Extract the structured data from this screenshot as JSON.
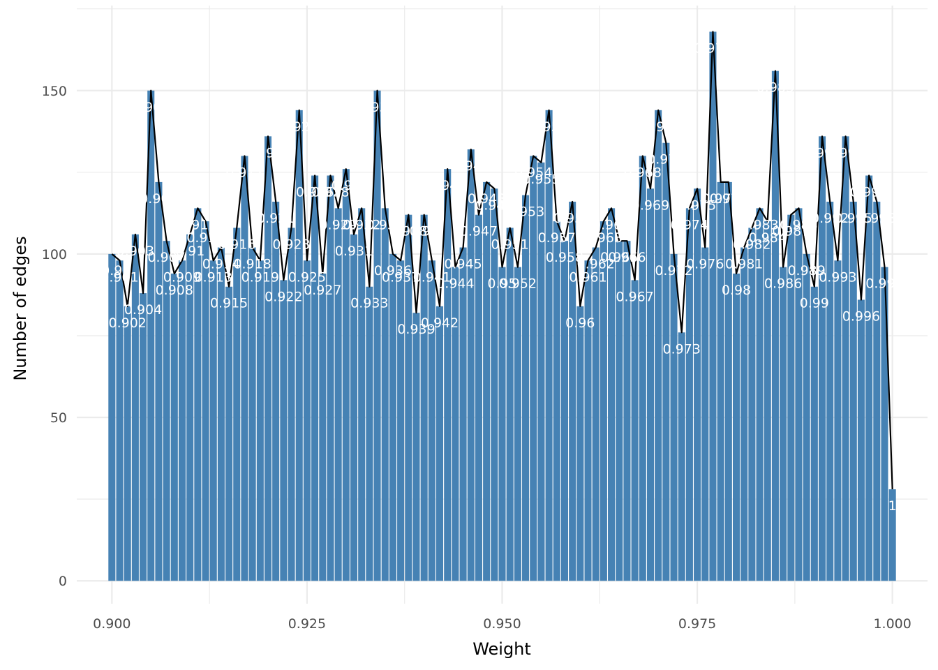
{
  "chart_data": {
    "type": "bar",
    "title": "",
    "xlabel": "Weight",
    "ylabel": "Number of edges",
    "xlim": [
      0.8955,
      1.0045
    ],
    "ylim": [
      -7,
      176
    ],
    "x_ticks": [
      0.9,
      0.925,
      0.95,
      0.975,
      1.0
    ],
    "x_tick_labels": [
      "0.900",
      "0.925",
      "0.950",
      "0.975",
      "1.000"
    ],
    "y_ticks": [
      0,
      50,
      100,
      150
    ],
    "y_tick_labels": [
      "0",
      "50",
      "100",
      "150"
    ],
    "grid": true,
    "legend": "none",
    "bar_color": "#4682b4",
    "line_color": "#000000",
    "label_color": "#ffffff",
    "x": [
      0.9,
      0.901,
      0.902,
      0.903,
      0.904,
      0.905,
      0.906,
      0.907,
      0.908,
      0.909,
      0.91,
      0.911,
      0.912,
      0.913,
      0.914,
      0.915,
      0.916,
      0.917,
      0.918,
      0.919,
      0.92,
      0.921,
      0.922,
      0.923,
      0.924,
      0.925,
      0.926,
      0.927,
      0.928,
      0.929,
      0.93,
      0.931,
      0.932,
      0.933,
      0.934,
      0.935,
      0.936,
      0.937,
      0.938,
      0.939,
      0.94,
      0.941,
      0.942,
      0.943,
      0.944,
      0.945,
      0.946,
      0.947,
      0.948,
      0.949,
      0.95,
      0.951,
      0.952,
      0.953,
      0.954,
      0.955,
      0.956,
      0.957,
      0.958,
      0.959,
      0.96,
      0.961,
      0.962,
      0.963,
      0.964,
      0.965,
      0.966,
      0.967,
      0.968,
      0.969,
      0.97,
      0.971,
      0.972,
      0.973,
      0.974,
      0.975,
      0.976,
      0.977,
      0.978,
      0.979,
      0.98,
      0.981,
      0.982,
      0.983,
      0.984,
      0.985,
      0.986,
      0.987,
      0.988,
      0.989,
      0.99,
      0.991,
      0.992,
      0.993,
      0.994,
      0.995,
      0.996,
      0.997,
      0.998,
      0.999,
      1.0
    ],
    "values": [
      100,
      98,
      84,
      106,
      88,
      150,
      122,
      104,
      94,
      98,
      106,
      114,
      110,
      98,
      102,
      90,
      108,
      130,
      102,
      98,
      136,
      116,
      92,
      108,
      144,
      98,
      124,
      94,
      124,
      114,
      126,
      106,
      114,
      90,
      150,
      114,
      100,
      98,
      112,
      82,
      112,
      98,
      84,
      126,
      96,
      102,
      132,
      112,
      122,
      120,
      96,
      108,
      96,
      118,
      130,
      128,
      144,
      110,
      104,
      116,
      84,
      98,
      102,
      110,
      114,
      104,
      104,
      92,
      130,
      120,
      144,
      134,
      100,
      76,
      114,
      120,
      102,
      168,
      122,
      122,
      94,
      102,
      108,
      114,
      110,
      156,
      96,
      112,
      114,
      100,
      90,
      136,
      116,
      98,
      136,
      116,
      86,
      124,
      116,
      96,
      28
    ],
    "point_labels": [
      "0.9",
      "0.901",
      "0.902",
      "0.903",
      "0.904",
      "0.905",
      "0.906",
      "0.907",
      "0.908",
      "0.909",
      "0.91",
      "0.911",
      "0.912",
      "0.913",
      "0.914",
      "0.915",
      "0.916",
      "0.917",
      "0.918",
      "0.919",
      "0.92",
      "0.921",
      "0.922",
      "0.923",
      "0.924",
      "0.925",
      "0.926",
      "0.927",
      "0.928",
      "0.929",
      "0.93",
      "0.931",
      "0.932",
      "0.933",
      "0.934",
      "0.935",
      "0.936",
      "0.937",
      "0.938",
      "0.939",
      "0.94",
      "0.941",
      "0.942",
      "0.943",
      "0.944",
      "0.945",
      "0.946",
      "0.947",
      "0.948",
      "0.949",
      "0.95",
      "0.951",
      "0.952",
      "0.953",
      "0.954",
      "0.955",
      "0.956",
      "0.957",
      "0.958",
      "0.959",
      "0.96",
      "0.961",
      "0.962",
      "0.963",
      "0.964",
      "0.965",
      "0.966",
      "0.967",
      "0.968",
      "0.969",
      "0.97",
      "0.971",
      "0.972",
      "0.973",
      "0.974",
      "0.975",
      "0.976",
      "0.977",
      "0.978",
      "0.979",
      "0.98",
      "0.981",
      "0.982",
      "0.983",
      "0.984",
      "0.985",
      "0.986",
      "0.987",
      "0.988",
      "0.989",
      "0.99",
      "0.991",
      "0.992",
      "0.993",
      "0.994",
      "0.995",
      "0.996",
      "0.997",
      "0.998",
      "0.999",
      "1"
    ]
  }
}
